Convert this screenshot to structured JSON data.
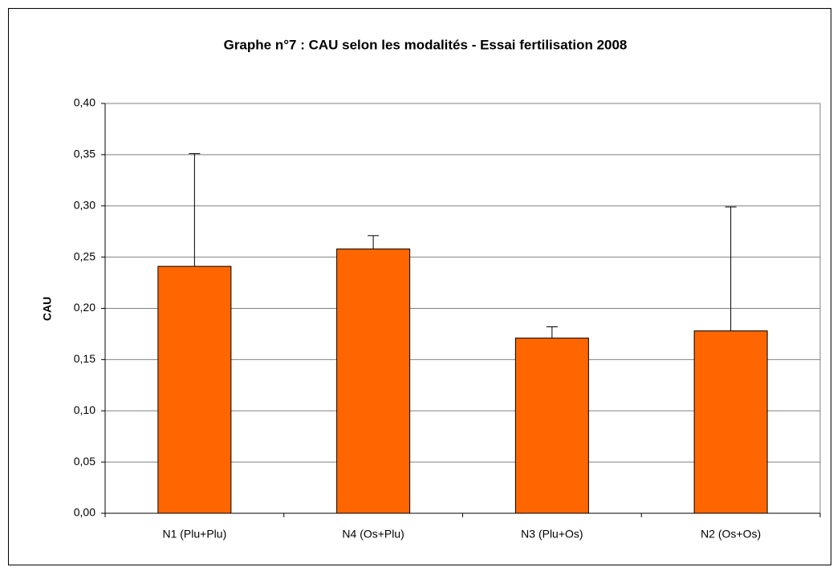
{
  "chart_data": {
    "type": "bar",
    "title": "Graphe n°7 : CAU selon les modalités - Essai fertilisation 2008",
    "y_label": "CAU",
    "categories": [
      "N1 (Plu+Plu)",
      "N4 (Os+Plu)",
      "N3 (Plu+Os)",
      "N2 (Os+Os)"
    ],
    "values": [
      0.241,
      0.258,
      0.171,
      0.178
    ],
    "errors": [
      0.11,
      0.013,
      0.011,
      0.121
    ],
    "color": "#ff6600",
    "ylim": [
      0,
      0.4
    ],
    "yticks": [
      {
        "value": 0,
        "label": "0,00"
      },
      {
        "value": 0.05,
        "label": "0,05"
      },
      {
        "value": 0.1,
        "label": "0,10"
      },
      {
        "value": 0.15,
        "label": "0,15"
      },
      {
        "value": 0.2,
        "label": "0,20"
      },
      {
        "value": 0.25,
        "label": "0,25"
      },
      {
        "value": 0.3,
        "label": "0,30"
      },
      {
        "value": 0.35,
        "label": "0,35"
      },
      {
        "value": 0.4,
        "label": "0,40"
      }
    ],
    "grid": true
  }
}
